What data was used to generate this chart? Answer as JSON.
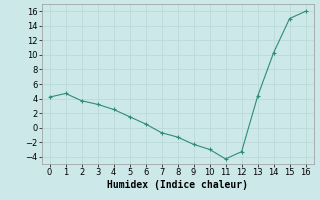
{
  "x": [
    0,
    1,
    2,
    3,
    4,
    5,
    6,
    7,
    8,
    9,
    10,
    11,
    12,
    13,
    14,
    15,
    16
  ],
  "y": [
    4.2,
    4.7,
    3.7,
    3.2,
    2.5,
    1.5,
    0.5,
    -0.7,
    -1.3,
    -2.3,
    -3.0,
    -4.3,
    -3.3,
    4.3,
    10.3,
    15.0,
    16.0
  ],
  "line_color": "#2e8b7a",
  "marker": "+",
  "marker_size": 3,
  "marker_linewidth": 0.8,
  "background_color": "#cde8e8",
  "grid_color": "#b8d8d8",
  "xlabel": "Humidex (Indice chaleur)",
  "xlim": [
    -0.5,
    16.5
  ],
  "ylim": [
    -5,
    17
  ],
  "yticks": [
    -4,
    -2,
    0,
    2,
    4,
    6,
    8,
    10,
    12,
    14,
    16
  ],
  "xticks": [
    0,
    1,
    2,
    3,
    4,
    5,
    6,
    7,
    8,
    9,
    10,
    11,
    12,
    13,
    14,
    15,
    16
  ],
  "xlabel_fontsize": 7,
  "tick_fontsize": 6,
  "linewidth": 0.8
}
